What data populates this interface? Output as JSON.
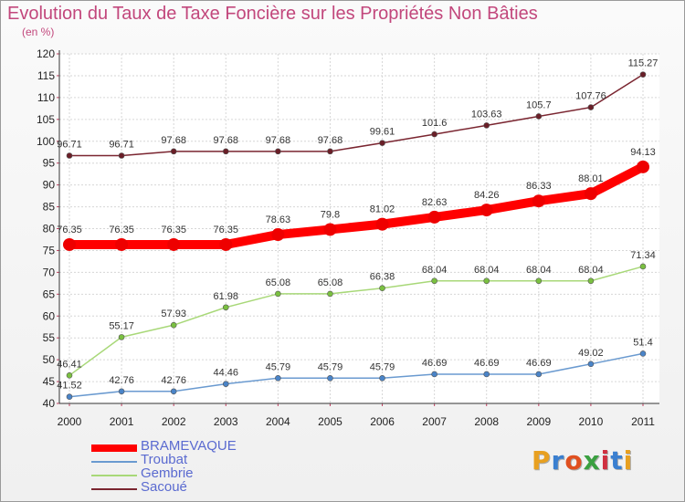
{
  "title": "Evolution du Taux de Taxe Foncière sur les Propriétés Non Bâties",
  "subtitle": "(en %)",
  "logo": {
    "text": "Proxiti",
    "colors": [
      "#e8a020",
      "#3a7fd0",
      "#e05020",
      "#3aa040",
      "#d03040",
      "#3a7fd0",
      "#e8a020"
    ]
  },
  "chart_data": {
    "type": "line",
    "title": "Evolution du Taux de Taxe Foncière sur les Propriétés Non Bâties",
    "ylabel": "(en %)",
    "xlabel": "",
    "ylim": [
      40,
      120
    ],
    "yticks": [
      40,
      45,
      50,
      55,
      60,
      65,
      70,
      75,
      80,
      85,
      90,
      95,
      100,
      105,
      110,
      115,
      120
    ],
    "categories": [
      "2000",
      "2001",
      "2002",
      "2003",
      "2004",
      "2005",
      "2006",
      "2007",
      "2008",
      "2009",
      "2010",
      "2011"
    ],
    "legend_position": "bottom-left",
    "series": [
      {
        "name": "Sacoué",
        "color": "#7a2530",
        "marker": "#6a1f28",
        "width": "thin",
        "values": [
          96.71,
          96.71,
          97.68,
          97.68,
          97.68,
          97.68,
          99.61,
          101.6,
          103.63,
          105.7,
          107.76,
          115.27
        ],
        "labels": [
          "96.71",
          "96.71",
          "97.68",
          "97.68",
          "97.68",
          "97.68",
          "99.61",
          "101.6",
          "103.63",
          "105.7",
          "107.76",
          "115.27"
        ]
      },
      {
        "name": "BRAMEVAQUE",
        "color": "#ff0000",
        "marker": "#ee0000",
        "width": "thick",
        "values": [
          76.35,
          76.35,
          76.35,
          76.35,
          78.63,
          79.8,
          81.02,
          82.63,
          84.26,
          86.33,
          88.01,
          94.13
        ],
        "labels": [
          "76.35",
          "76.35",
          "76.35",
          "76.35",
          "78.63",
          "79.8",
          "81.02",
          "82.63",
          "84.26",
          "86.33",
          "88.01",
          "94.13"
        ]
      },
      {
        "name": "Gembrie",
        "color": "#a8d878",
        "marker": "#7ac040",
        "width": "thin",
        "values": [
          46.41,
          55.17,
          57.93,
          61.98,
          65.08,
          65.08,
          66.38,
          68.04,
          68.04,
          68.04,
          68.04,
          71.34
        ],
        "labels": [
          "46.41",
          "55.17",
          "57.93",
          "61.98",
          "65.08",
          "65.08",
          "66.38",
          "68.04",
          "68.04",
          "68.04",
          "68.04",
          "71.34"
        ]
      },
      {
        "name": "Troubat",
        "color": "#6a9ad0",
        "marker": "#4a84c8",
        "width": "thin",
        "values": [
          41.52,
          42.76,
          42.76,
          44.46,
          45.79,
          45.79,
          45.79,
          46.69,
          46.69,
          46.69,
          49.02,
          51.4
        ],
        "labels": [
          "41.52",
          "42.76",
          "42.76",
          "44.46",
          "45.79",
          "45.79",
          "45.79",
          "46.69",
          "46.69",
          "46.69",
          "49.02",
          "51.4"
        ]
      }
    ],
    "legend": [
      "BRAMEVAQUE",
      "Troubat",
      "Gembrie",
      "Sacoué"
    ]
  }
}
